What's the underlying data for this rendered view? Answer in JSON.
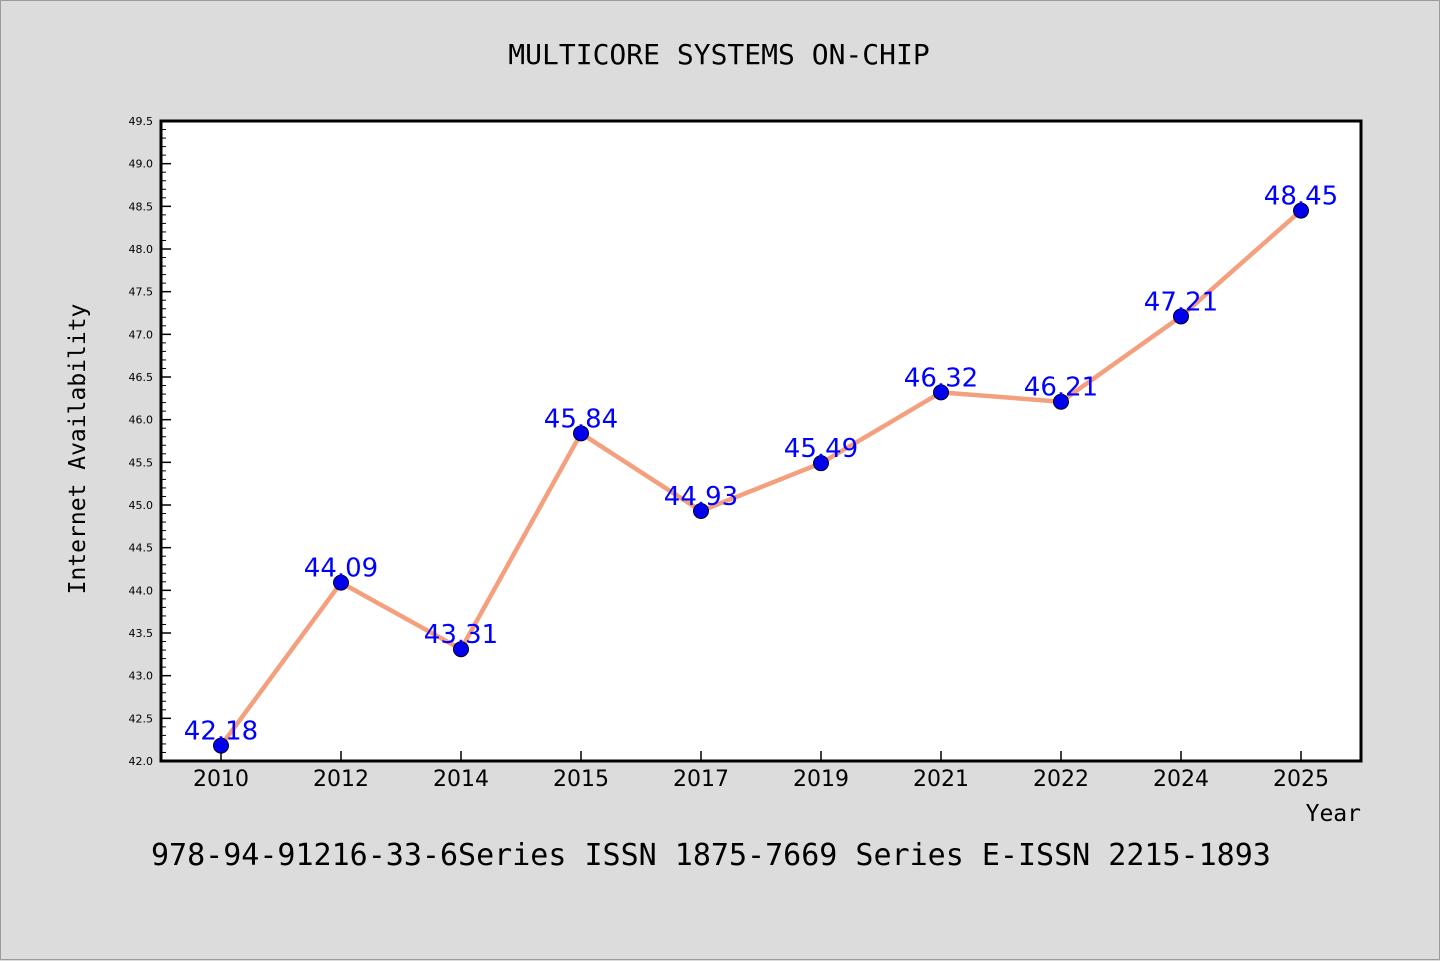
{
  "chart_data": {
    "type": "line",
    "title": "MULTICORE SYSTEMS ON-CHIP",
    "xlabel": "Year",
    "ylabel": "Internet Availability",
    "footer": "978-94-91216-33-6Series ISSN 1875-7669 Series E-ISSN 2215-1893",
    "categories": [
      "2010",
      "2012",
      "2014",
      "2015",
      "2017",
      "2019",
      "2021",
      "2022",
      "2024",
      "2025"
    ],
    "values": [
      42.18,
      44.09,
      43.31,
      45.84,
      44.93,
      45.49,
      46.32,
      46.21,
      47.21,
      48.45
    ],
    "value_labels": [
      "42.18",
      "44.09",
      "43.31",
      "45.84",
      "44.93",
      "45.49",
      "46.32",
      "46.21",
      "47.21",
      "48.45"
    ],
    "ylim": [
      42.0,
      49.5
    ],
    "yticks": [
      "42.0",
      "42.5",
      "43.0",
      "43.5",
      "44.0",
      "44.5",
      "45.0",
      "45.5",
      "46.0",
      "46.5",
      "47.0",
      "47.5",
      "48.0",
      "48.5",
      "49.0",
      "49.5"
    ],
    "grid": false,
    "legend": "none",
    "colors": {
      "line": "#f4a07e",
      "marker": "#0000ee",
      "label": "#0000ff",
      "axis": "#000000",
      "plot_bg": "#ffffff",
      "page_bg": "#dcdcdc"
    }
  }
}
